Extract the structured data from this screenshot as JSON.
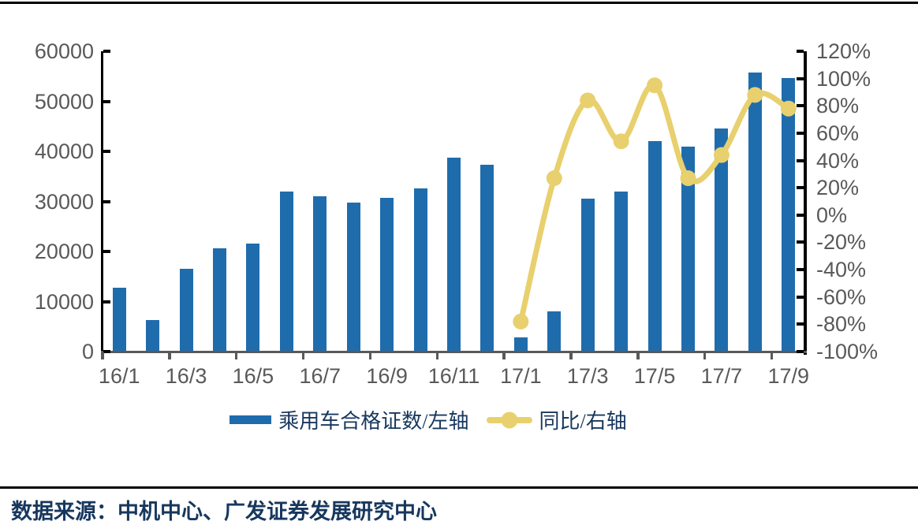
{
  "chart_data": {
    "type": "combo_bar_line",
    "title": "",
    "categories": [
      "16/1",
      "16/2",
      "16/3",
      "16/4",
      "16/5",
      "16/6",
      "16/7",
      "16/8",
      "16/9",
      "16/10",
      "16/11",
      "16/12",
      "17/1",
      "17/2",
      "17/3",
      "17/4",
      "17/5",
      "17/6",
      "17/7",
      "17/8",
      "17/9"
    ],
    "series": [
      {
        "name": "乘用车合格证数/左轴",
        "type": "bar",
        "axis": "left",
        "color": "#1F6CAD",
        "values": [
          12700,
          6300,
          16600,
          20600,
          21500,
          32000,
          31000,
          29700,
          30700,
          32600,
          38800,
          37400,
          2800,
          8100,
          30500,
          31900,
          42000,
          41000,
          44600,
          55800,
          54600
        ]
      },
      {
        "name": "同比/右轴",
        "type": "line",
        "axis": "right",
        "color": "#E8D06E",
        "unit": "%",
        "values": [
          null,
          null,
          null,
          null,
          null,
          null,
          null,
          null,
          null,
          null,
          null,
          null,
          -78,
          27,
          84,
          54,
          95,
          27,
          44,
          88,
          78
        ]
      }
    ],
    "left_axis": {
      "min": 0,
      "max": 60000,
      "step": 10000,
      "labels": [
        "60000",
        "50000",
        "40000",
        "30000",
        "20000",
        "10000",
        "0"
      ]
    },
    "right_axis": {
      "min": -100,
      "max": 120,
      "step": 20,
      "labels": [
        "120%",
        "100%",
        "80%",
        "60%",
        "40%",
        "20%",
        "0%",
        "-20%",
        "-40%",
        "-60%",
        "-80%",
        "-100%"
      ]
    },
    "x_tick_labels": [
      "16/1",
      "16/3",
      "16/5",
      "16/7",
      "16/9",
      "16/11",
      "17/1",
      "17/3",
      "17/5",
      "17/7",
      "17/9"
    ],
    "grid": false,
    "legend_position": "bottom"
  },
  "legend": {
    "items": [
      {
        "label": "乘用车合格证数/左轴",
        "swatch": "bar-swatch",
        "color": "#1F6CAD"
      },
      {
        "label": "同比/右轴",
        "swatch": "line-dot-swatch",
        "color": "#E8D06E"
      }
    ]
  },
  "source": {
    "text": "数据来源：中机中心、广发证券发展研究中心"
  },
  "colors": {
    "bar": "#1F6CAD",
    "line": "#E8D06E",
    "axis_text": "#595959",
    "dark_text": "#17375E",
    "axis_line": "#000000",
    "x_axis_line": "#595959"
  }
}
